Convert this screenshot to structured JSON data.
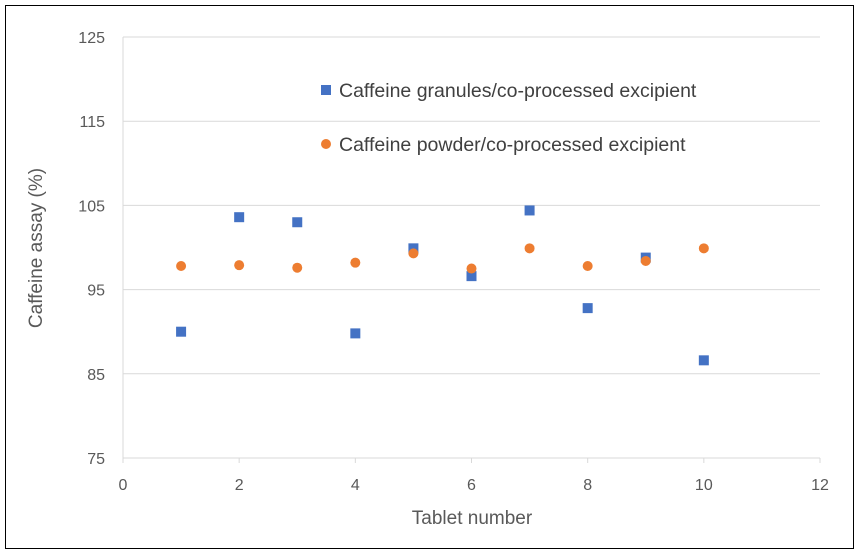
{
  "chart_data": {
    "type": "scatter",
    "title": "",
    "xlabel": "Tablet number",
    "ylabel": "Caffeine assay (%)",
    "xlim": [
      0,
      12
    ],
    "ylim": [
      75,
      125
    ],
    "xticks": [
      0,
      2,
      4,
      6,
      8,
      10,
      12
    ],
    "yticks": [
      75,
      85,
      95,
      105,
      115,
      125
    ],
    "grid": "horizontal",
    "legend_position": "top-right",
    "series": [
      {
        "name": "Caffeine granules/co-processed excipient",
        "marker": "square",
        "color": "#4472C4",
        "points": [
          {
            "x": 1,
            "y": 90.0
          },
          {
            "x": 2,
            "y": 103.6
          },
          {
            "x": 3,
            "y": 103.0
          },
          {
            "x": 4,
            "y": 89.8
          },
          {
            "x": 5,
            "y": 99.9
          },
          {
            "x": 6,
            "y": 96.6
          },
          {
            "x": 7,
            "y": 104.4
          },
          {
            "x": 8,
            "y": 92.8
          },
          {
            "x": 9,
            "y": 98.8
          },
          {
            "x": 10,
            "y": 86.6
          }
        ]
      },
      {
        "name": "Caffeine powder/co-processed excipient",
        "marker": "circle",
        "color": "#ED7D31",
        "points": [
          {
            "x": 1,
            "y": 97.8
          },
          {
            "x": 2,
            "y": 97.9
          },
          {
            "x": 3,
            "y": 97.6
          },
          {
            "x": 4,
            "y": 98.2
          },
          {
            "x": 5,
            "y": 99.3
          },
          {
            "x": 6,
            "y": 97.5
          },
          {
            "x": 7,
            "y": 99.9
          },
          {
            "x": 8,
            "y": 97.8
          },
          {
            "x": 9,
            "y": 98.4
          },
          {
            "x": 10,
            "y": 99.9
          }
        ]
      }
    ]
  }
}
